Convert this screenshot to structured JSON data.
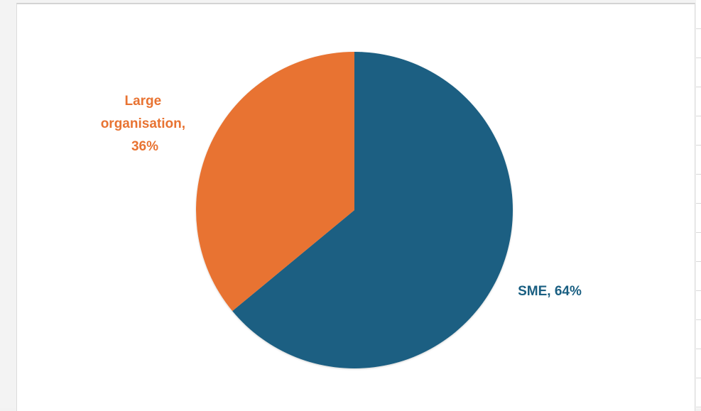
{
  "chart_data": {
    "type": "pie",
    "title": "",
    "series": [
      {
        "slices": [
          {
            "label": "SME",
            "value": 64,
            "percent_label": "64%",
            "display": "SME, 64%",
            "color": "#1a5f82"
          },
          {
            "label": "Large organisation",
            "value": 36,
            "percent_label": "36%",
            "display_lines": [
              "Large",
              "organisation,",
              "36%"
            ],
            "color": "#e87332"
          }
        ]
      }
    ],
    "start_angle_deg": 0,
    "direction": "clockwise"
  }
}
